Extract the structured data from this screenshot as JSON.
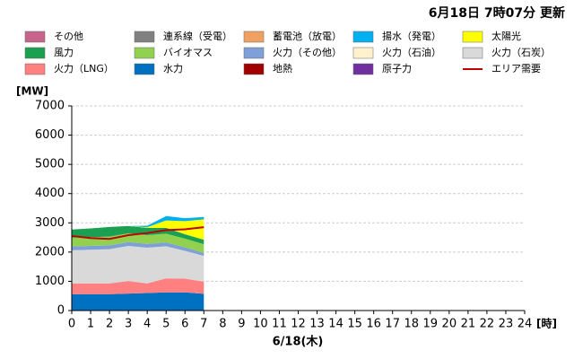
{
  "chart_data": {
    "type": "stacked-area",
    "title": "6月18日 7時07分 更新",
    "ylabel": "[MW]",
    "xunit": "[時]",
    "xlabel": "6/18(木)",
    "x": [
      0,
      1,
      2,
      3,
      4,
      5,
      6,
      7
    ],
    "xlim": [
      0,
      24
    ],
    "xticks": [
      0,
      1,
      2,
      3,
      4,
      5,
      6,
      7,
      8,
      9,
      10,
      11,
      12,
      13,
      14,
      15,
      16,
      17,
      18,
      19,
      20,
      21,
      22,
      23,
      24
    ],
    "ylim": [
      0,
      7000
    ],
    "yticks": [
      0,
      1000,
      2000,
      3000,
      4000,
      5000,
      6000,
      7000
    ],
    "grid": true,
    "series": [
      {
        "name": "その他",
        "color": "#c8648c",
        "values": [
          0,
          0,
          0,
          0,
          0,
          0,
          0,
          0
        ]
      },
      {
        "name": "連系線（受電）",
        "color": "#808080",
        "values": [
          0,
          0,
          0,
          0,
          0,
          0,
          0,
          0
        ]
      },
      {
        "name": "蓄電池（放電）",
        "color": "#f0a060",
        "values": [
          0,
          0,
          0,
          0,
          0,
          0,
          0,
          0
        ]
      },
      {
        "name": "揚水（発電）",
        "color": "#00b0f0",
        "values": [
          0,
          0,
          0,
          0,
          50,
          150,
          100,
          80
        ]
      },
      {
        "name": "太陽光",
        "color": "#ffff00",
        "values": [
          0,
          0,
          0,
          0,
          20,
          250,
          450,
          700
        ]
      },
      {
        "name": "風力",
        "color": "#1aa050",
        "values": [
          280,
          300,
          330,
          250,
          250,
          200,
          150,
          150
        ]
      },
      {
        "name": "バイオマス",
        "color": "#92d050",
        "values": [
          300,
          300,
          300,
          300,
          300,
          300,
          300,
          300
        ]
      },
      {
        "name": "火力（その他）",
        "color": "#7f9fd8",
        "values": [
          130,
          130,
          130,
          130,
          130,
          130,
          120,
          100
        ]
      },
      {
        "name": "火力（石油）",
        "color": "#fff2cc",
        "values": [
          0,
          0,
          0,
          0,
          0,
          0,
          0,
          0
        ]
      },
      {
        "name": "火力（石炭）",
        "color": "#d9d9d9",
        "values": [
          1130,
          1150,
          1170,
          1200,
          1220,
          1100,
          950,
          880
        ]
      },
      {
        "name": "火力（LNG）",
        "color": "#ff8080",
        "values": [
          370,
          370,
          370,
          430,
          330,
          480,
          470,
          420
        ]
      },
      {
        "name": "水力",
        "color": "#0070c0",
        "values": [
          560,
          560,
          560,
          580,
          600,
          620,
          620,
          570
        ]
      },
      {
        "name": "地熱",
        "color": "#a00000",
        "values": [
          0,
          0,
          0,
          0,
          0,
          0,
          0,
          0
        ]
      },
      {
        "name": "原子力",
        "color": "#7030a0",
        "values": [
          0,
          0,
          0,
          0,
          0,
          0,
          0,
          0
        ]
      },
      {
        "name": "エリア需要",
        "color": "#c00000",
        "type": "line",
        "values": [
          2550,
          2480,
          2450,
          2580,
          2650,
          2750,
          2780,
          2850
        ]
      }
    ]
  }
}
